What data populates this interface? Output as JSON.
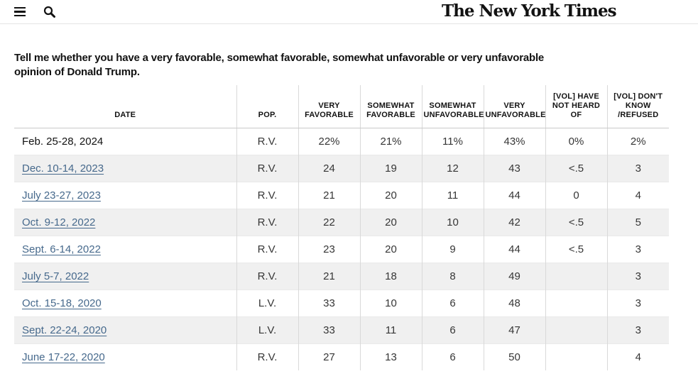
{
  "nav": {
    "logo_text": "The New York Times"
  },
  "question": "Tell me whether you have a very favorable, somewhat favorable, somewhat unfavorable or very unfavorable\nopinion of Donald Trump.",
  "table": {
    "columns": [
      "DATE",
      "POP.",
      "VERY\nFAVORABLE",
      "SOMEWHAT\nFAVORABLE",
      "SOMEWHAT\nUNFAVORABLE",
      "VERY\nUNFAVORABLE",
      "[VOL] HAVE\nNOT HEARD OF",
      "[VOL] DON'T\nKNOW\n/REFUSED"
    ],
    "rows": [
      {
        "date": "Feb. 25-28, 2024",
        "link": false,
        "pop": "R.V.",
        "values": [
          "22%",
          "21%",
          "11%",
          "43%",
          "0%",
          "2%"
        ]
      },
      {
        "date": "Dec. 10-14, 2023",
        "link": true,
        "pop": "R.V.",
        "values": [
          "24",
          "19",
          "12",
          "43",
          "<.5",
          "3"
        ]
      },
      {
        "date": "July 23-27, 2023",
        "link": true,
        "pop": "R.V.",
        "values": [
          "21",
          "20",
          "11",
          "44",
          "0",
          "4"
        ]
      },
      {
        "date": "Oct. 9-12, 2022",
        "link": true,
        "pop": "R.V.",
        "values": [
          "22",
          "20",
          "10",
          "42",
          "<.5",
          "5"
        ]
      },
      {
        "date": "Sept. 6-14, 2022",
        "link": true,
        "pop": "R.V.",
        "values": [
          "23",
          "20",
          "9",
          "44",
          "<.5",
          "3"
        ]
      },
      {
        "date": "July 5-7, 2022",
        "link": true,
        "pop": "R.V.",
        "values": [
          "21",
          "18",
          "8",
          "49",
          "",
          "3"
        ]
      },
      {
        "date": "Oct. 15-18, 2020",
        "link": true,
        "pop": "L.V.",
        "values": [
          "33",
          "10",
          "6",
          "48",
          "",
          "3"
        ]
      },
      {
        "date": "Sept. 22-24, 2020",
        "link": true,
        "pop": "L.V.",
        "values": [
          "33",
          "11",
          "6",
          "47",
          "",
          "3"
        ]
      },
      {
        "date": "June 17-22, 2020",
        "link": true,
        "pop": "R.V.",
        "values": [
          "27",
          "13",
          "6",
          "50",
          "",
          "4"
        ]
      }
    ]
  },
  "colors": {
    "link_blue": "#46698C",
    "row_stripe": "#f0f0f0",
    "header_border": "#c9c9c9",
    "column_divider": "#d9d9d9",
    "row_divider": "#e9e9e9",
    "text_primary": "#121212",
    "text_cell": "#363636"
  }
}
